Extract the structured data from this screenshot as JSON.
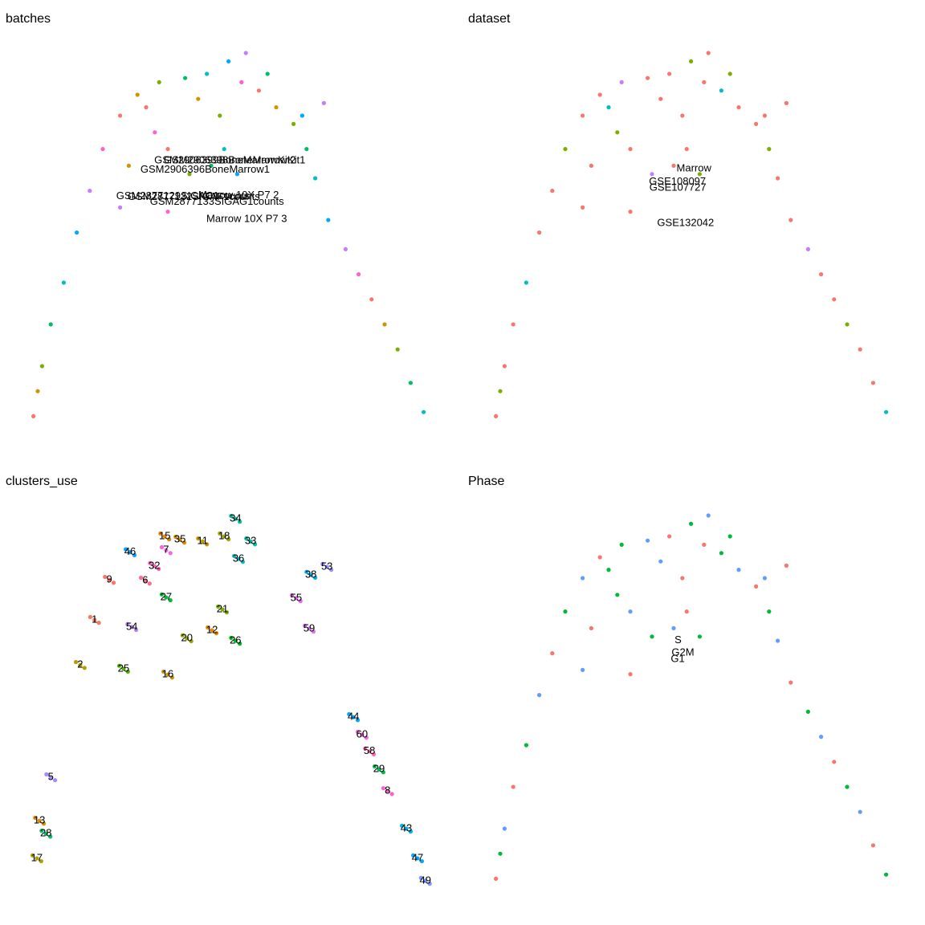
{
  "chart_data": [
    {
      "type": "scatter",
      "title": "batches",
      "xlim": [
        0,
        100
      ],
      "ylim": [
        0,
        100
      ],
      "series": [
        {
          "name": "GSM2877129SIGAC1counts",
          "color": "#F8766D",
          "x": [
            4,
            24,
            56,
            82,
            35,
            30
          ],
          "y": [
            8,
            80,
            86,
            36,
            72,
            82
          ]
        },
        {
          "name": "GSM2877132SIGAF1counts",
          "color": "#CD9600",
          "x": [
            5,
            28,
            60,
            85,
            26,
            42
          ],
          "y": [
            14,
            85,
            82,
            30,
            68,
            84
          ]
        },
        {
          "name": "GSM2877133SIGAG1counts",
          "color": "#7CAE00",
          "x": [
            6,
            33,
            64,
            88,
            40,
            47
          ],
          "y": [
            20,
            88,
            78,
            24,
            66,
            80
          ]
        },
        {
          "name": "Marrow 10X P7 2",
          "color": "#00BE67",
          "x": [
            8,
            39,
            67,
            91,
            45,
            58
          ],
          "y": [
            30,
            89,
            72,
            16,
            68,
            90
          ]
        },
        {
          "name": "Marrow 10X P7 3",
          "color": "#00BFC4",
          "x": [
            11,
            44,
            69,
            94,
            48
          ],
          "y": [
            40,
            90,
            65,
            9,
            72
          ]
        },
        {
          "name": "GSM2906398BoneMarrowKit1",
          "color": "#00A9FF",
          "x": [
            14,
            49,
            72,
            66,
            51
          ],
          "y": [
            52,
            93,
            55,
            80,
            66
          ]
        },
        {
          "name": "GSM2906399BoneMarrowKit2",
          "color": "#C77CFF",
          "x": [
            17,
            53,
            76,
            71,
            24
          ],
          "y": [
            62,
            95,
            48,
            83,
            58
          ]
        },
        {
          "name": "GSM2906396BoneMarrow1",
          "color": "#FF61CC",
          "x": [
            20,
            52,
            79,
            32,
            35
          ],
          "y": [
            72,
            88,
            42,
            76,
            57
          ]
        }
      ]
    },
    {
      "type": "scatter",
      "title": "dataset",
      "xlim": [
        0,
        100
      ],
      "ylim": [
        0,
        100
      ],
      "series": [
        {
          "name": "GSE107727",
          "color": "#F8766D",
          "x": [
            4,
            8,
            17,
            28,
            44,
            52,
            64,
            72,
            82,
            91,
            71,
            26,
            48,
            35,
            47,
            6,
            14,
            24,
            39,
            53,
            60,
            69,
            79,
            88,
            66,
            35,
            45,
            24,
            42
          ],
          "y": [
            8,
            30,
            62,
            85,
            90,
            88,
            78,
            55,
            36,
            16,
            83,
            68,
            72,
            57,
            80,
            20,
            52,
            80,
            89,
            95,
            82,
            65,
            42,
            24,
            80,
            72,
            68,
            58,
            84
          ]
        },
        {
          "name": "GSE108097",
          "color": "#7CAE00",
          "x": [
            5,
            20,
            49,
            67,
            85,
            32,
            51,
            58
          ],
          "y": [
            14,
            72,
            93,
            72,
            30,
            76,
            66,
            90
          ]
        },
        {
          "name": "GSE132042",
          "color": "#00BFC4",
          "x": [
            11,
            56,
            94,
            30
          ],
          "y": [
            40,
            86,
            9,
            82
          ]
        },
        {
          "name": "Marrow",
          "color": "#C77CFF",
          "x": [
            33,
            76,
            40
          ],
          "y": [
            88,
            48,
            66
          ]
        }
      ]
    },
    {
      "type": "scatter",
      "title": "clusters_use",
      "xlim": [
        0,
        100
      ],
      "ylim": [
        0,
        100
      ],
      "series": [
        {
          "name": "34",
          "color": "#00BFA0",
          "x": [
            49.6,
            50.6,
            51.6
          ],
          "y": [
            94.9,
            94.2,
            93.5
          ]
        },
        {
          "name": "18",
          "color": "#A3A500",
          "x": [
            47,
            48,
            49
          ],
          "y": [
            90.7,
            90,
            89.3
          ]
        },
        {
          "name": "33",
          "color": "#00C1A3",
          "x": [
            53.1,
            54.1,
            55.1
          ],
          "y": [
            89.5,
            88.8,
            88.1
          ]
        },
        {
          "name": "11",
          "color": "#C09B00",
          "x": [
            42,
            43,
            44
          ],
          "y": [
            89.5,
            88.8,
            88.1
          ]
        },
        {
          "name": "35",
          "color": "#D89000",
          "x": [
            36.8,
            37.8,
            38.8
          ],
          "y": [
            89.9,
            89.2,
            88.5
          ]
        },
        {
          "name": "15",
          "color": "#E38900",
          "x": [
            33.3,
            34.3,
            35.3
          ],
          "y": [
            90.7,
            90,
            89.3
          ]
        },
        {
          "name": "7",
          "color": "#F564E3",
          "x": [
            33.6,
            34.6,
            35.6
          ],
          "y": [
            87.4,
            86.7,
            86
          ]
        },
        {
          "name": "36",
          "color": "#00BFC4",
          "x": [
            50.3,
            51.3,
            52.3
          ],
          "y": [
            85.3,
            84.6,
            83.9
          ]
        },
        {
          "name": "46",
          "color": "#00A5FF",
          "x": [
            25.3,
            26.3,
            27.3
          ],
          "y": [
            86.9,
            86.2,
            85.5
          ]
        },
        {
          "name": "32",
          "color": "#FF62BC",
          "x": [
            30.9,
            31.9,
            32.9
          ],
          "y": [
            83.6,
            82.9,
            82.2
          ]
        },
        {
          "name": "38",
          "color": "#00B0F6",
          "x": [
            67,
            68,
            69
          ],
          "y": [
            81.5,
            80.8,
            80.1
          ]
        },
        {
          "name": "53",
          "color": "#9590FF",
          "x": [
            70.7,
            71.7,
            72.7
          ],
          "y": [
            83.4,
            82.7,
            82
          ]
        },
        {
          "name": "9",
          "color": "#F8766D",
          "x": [
            20.5,
            21.5,
            22.5
          ],
          "y": [
            80.3,
            79.6,
            78.9
          ]
        },
        {
          "name": "6",
          "color": "#FF6C91",
          "x": [
            28.8,
            29.8,
            30.8
          ],
          "y": [
            80.1,
            79.4,
            78.7
          ]
        },
        {
          "name": "27",
          "color": "#00BA38",
          "x": [
            33.6,
            34.6,
            35.6
          ],
          "y": [
            76.1,
            75.4,
            74.7
          ]
        },
        {
          "name": "55",
          "color": "#E76BF3",
          "x": [
            63.6,
            64.6,
            65.6
          ],
          "y": [
            75.9,
            75.2,
            74.5
          ]
        },
        {
          "name": "21",
          "color": "#7CAE00",
          "x": [
            46.6,
            47.6,
            48.6
          ],
          "y": [
            73.2,
            72.5,
            71.8
          ]
        },
        {
          "name": "1",
          "color": "#F47B5E",
          "x": [
            17.1,
            18.1,
            19.1
          ],
          "y": [
            70.7,
            70,
            69.3
          ]
        },
        {
          "name": "54",
          "color": "#B983FF",
          "x": [
            25.7,
            26.7,
            27.7
          ],
          "y": [
            69,
            68.3,
            67.6
          ]
        },
        {
          "name": "12",
          "color": "#E58700",
          "x": [
            44.2,
            45.2,
            46.2
          ],
          "y": [
            68.2,
            67.5,
            66.8
          ]
        },
        {
          "name": "59",
          "color": "#DE71F9",
          "x": [
            66.6,
            67.6,
            68.6
          ],
          "y": [
            68.6,
            67.9,
            67.2
          ]
        },
        {
          "name": "20",
          "color": "#99A800",
          "x": [
            38.4,
            39.4,
            40.4
          ],
          "y": [
            66.3,
            65.6,
            64.9
          ]
        },
        {
          "name": "26",
          "color": "#00B81F",
          "x": [
            49.6,
            50.6,
            51.6
          ],
          "y": [
            65.7,
            65,
            64.3
          ]
        },
        {
          "name": "2",
          "color": "#B79F00",
          "x": [
            13.8,
            14.8,
            15.8
          ],
          "y": [
            59.9,
            59.2,
            58.5
          ]
        },
        {
          "name": "25",
          "color": "#53B400",
          "x": [
            23.8,
            24.8,
            25.8
          ],
          "y": [
            59,
            58.3,
            57.6
          ]
        },
        {
          "name": "16",
          "color": "#C99800",
          "x": [
            34,
            35,
            36
          ],
          "y": [
            57.6,
            56.9,
            56.2
          ]
        },
        {
          "name": "44",
          "color": "#00A9FF",
          "x": [
            76.8,
            77.8,
            78.8
          ],
          "y": [
            47.4,
            46.7,
            46
          ]
        },
        {
          "name": "60",
          "color": "#F365E6",
          "x": [
            78.8,
            79.8,
            80.8
          ],
          "y": [
            43.2,
            42.5,
            41.8
          ]
        },
        {
          "name": "58",
          "color": "#FF65AC",
          "x": [
            80.5,
            81.5,
            82.5
          ],
          "y": [
            39.2,
            38.5,
            37.8
          ]
        },
        {
          "name": "29",
          "color": "#00BC56",
          "x": [
            82.7,
            83.7,
            84.7
          ],
          "y": [
            34.9,
            34.2,
            33.5
          ]
        },
        {
          "name": "5",
          "color": "#A58AFF",
          "x": [
            7,
            8,
            9
          ],
          "y": [
            33,
            32.3,
            31.6
          ]
        },
        {
          "name": "8",
          "color": "#FD61D1",
          "x": [
            84.7,
            85.7,
            86.7
          ],
          "y": [
            29.7,
            29,
            28.3
          ]
        },
        {
          "name": "13",
          "color": "#DB8E00",
          "x": [
            4.4,
            5.4,
            6.4
          ],
          "y": [
            22.6,
            21.9,
            21.2
          ]
        },
        {
          "name": "28",
          "color": "#00BE6C",
          "x": [
            5.9,
            6.9,
            7.9
          ],
          "y": [
            19.5,
            18.8,
            18.1
          ]
        },
        {
          "name": "43",
          "color": "#00B5EE",
          "x": [
            89,
            90,
            91
          ],
          "y": [
            20.7,
            20,
            19.3
          ]
        },
        {
          "name": "17",
          "color": "#AEA200",
          "x": [
            3.8,
            4.8,
            5.8
          ],
          "y": [
            13.6,
            12.9,
            12.2
          ]
        },
        {
          "name": "47",
          "color": "#00A6FF",
          "x": [
            91.6,
            92.6,
            93.6
          ],
          "y": [
            13.6,
            12.9,
            12.2
          ]
        },
        {
          "name": "49",
          "color": "#7997FF",
          "x": [
            93.4,
            94.4,
            95.4
          ],
          "y": [
            8.2,
            7.5,
            6.8
          ]
        }
      ]
    },
    {
      "type": "scatter",
      "title": "Phase",
      "xlim": [
        0,
        100
      ],
      "ylim": [
        0,
        100
      ],
      "series": [
        {
          "name": "G1",
          "color": "#F8766D",
          "x": [
            4,
            8,
            17,
            28,
            44,
            52,
            64,
            72,
            82,
            91,
            71,
            26,
            48,
            35,
            47
          ],
          "y": [
            8,
            30,
            62,
            85,
            90,
            88,
            78,
            55,
            36,
            16,
            83,
            68,
            72,
            57,
            80
          ]
        },
        {
          "name": "G2M",
          "color": "#00BA38",
          "x": [
            5,
            11,
            20,
            33,
            49,
            56,
            67,
            76,
            85,
            94,
            32,
            40,
            51,
            30,
            58
          ],
          "y": [
            14,
            40,
            72,
            88,
            93,
            86,
            72,
            48,
            30,
            9,
            76,
            66,
            66,
            82,
            90
          ]
        },
        {
          "name": "S",
          "color": "#619CFF",
          "x": [
            6,
            14,
            24,
            39,
            53,
            60,
            69,
            79,
            88,
            66,
            35,
            45,
            24,
            42
          ],
          "y": [
            20,
            52,
            80,
            89,
            95,
            82,
            65,
            42,
            24,
            80,
            72,
            68,
            58,
            84
          ]
        }
      ]
    }
  ]
}
